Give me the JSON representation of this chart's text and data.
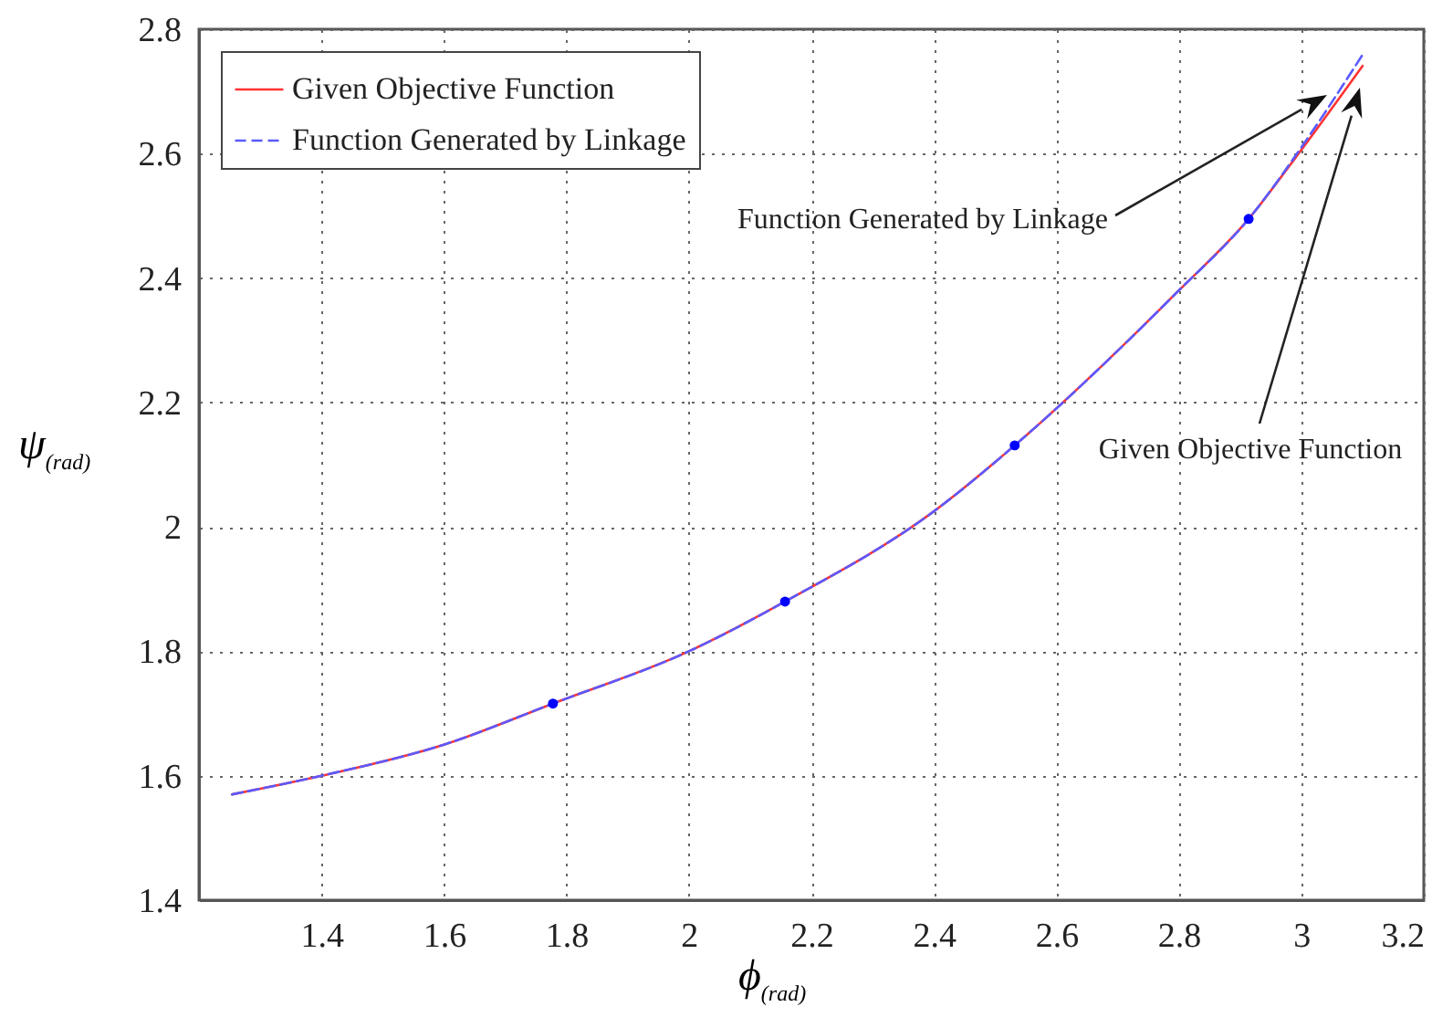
{
  "chart_data": {
    "type": "line",
    "xlabel": "ϕ$_{(rad)}$",
    "ylabel": "ψ$_{(rad)}$",
    "xlim": [
      1.2,
      3.2
    ],
    "xticks": [
      1.4,
      1.6,
      1.8,
      2,
      2.2,
      2.4,
      2.6,
      2.8,
      3,
      3.2
    ],
    "ylim": [
      1.4,
      2.8
    ],
    "yticks": [
      1.4,
      1.6,
      1.8,
      2,
      2.2,
      2.4,
      2.6,
      2.8
    ],
    "grid": true,
    "legend": "top left",
    "marker": "none",
    "series": [
      {
        "name": "Given Objective Function",
        "color": "#ff3333",
        "line_style": "solid",
        "x": [
          1.254,
          1.4,
          1.6,
          1.778,
          2,
          2.157,
          2.4,
          2.532,
          2.8,
          2.914,
          3,
          3.1
        ],
        "values": [
          1.57,
          1.6,
          1.65,
          1.716,
          1.8,
          1.88,
          2.025,
          2.131,
          2.38,
          2.495,
          2.606,
          2.741
        ]
      },
      {
        "name": "Function Generated by Linkage",
        "color": "#5a5aff",
        "line_style": "dashed",
        "x": [
          1.254,
          1.4,
          1.6,
          1.778,
          2,
          2.157,
          2.4,
          2.532,
          2.8,
          2.914,
          3,
          3.1
        ],
        "values": [
          1.57,
          1.6,
          1.65,
          1.716,
          1.8,
          1.88,
          2.025,
          2.131,
          2.38,
          2.495,
          2.61,
          2.759
        ]
      },
      {
        "type": "scatter",
        "color": "#0000ff",
        "marker": "circle",
        "x": [
          1.778,
          2.157,
          2.532,
          2.914
        ],
        "values": [
          1.716,
          1.88,
          2.131,
          2.495
        ]
      }
    ],
    "annotations": [
      "Function Generated by Linkage",
      "Given Objective Function"
    ]
  }
}
